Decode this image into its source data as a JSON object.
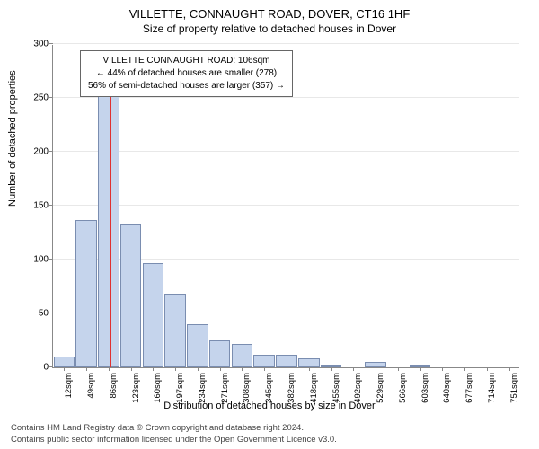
{
  "title": "VILLETTE, CONNAUGHT ROAD, DOVER, CT16 1HF",
  "subtitle": "Size of property relative to detached houses in Dover",
  "ylabel": "Number of detached properties",
  "xlabel": "Distribution of detached houses by size in Dover",
  "footer_line1": "Contains HM Land Registry data © Crown copyright and database right 2024.",
  "footer_line2": "Contains public sector information licensed under the Open Government Licence v3.0.",
  "chart": {
    "type": "bar",
    "ylim": [
      0,
      300
    ],
    "ytick_step": 50,
    "bar_color": "#c5d4ec",
    "bar_border": "#7a8db0",
    "highlight_color": "#e03030",
    "highlight_index": 2,
    "grid_color": "#e8e8e8",
    "background_color": "#ffffff",
    "axis_color": "#888888",
    "label_fontsize": 11,
    "tick_fontsize": 10,
    "categories": [
      "12sqm",
      "49sqm",
      "86sqm",
      "123sqm",
      "160sqm",
      "197sqm",
      "234sqm",
      "271sqm",
      "308sqm",
      "345sqm",
      "382sqm",
      "418sqm",
      "455sqm",
      "492sqm",
      "529sqm",
      "566sqm",
      "603sqm",
      "640sqm",
      "677sqm",
      "714sqm",
      "751sqm"
    ],
    "values": [
      10,
      137,
      252,
      133,
      97,
      68,
      40,
      25,
      22,
      12,
      12,
      8,
      2,
      0,
      5,
      0,
      2,
      0,
      0,
      0,
      0
    ],
    "bar_width": 0.95
  },
  "info_box": {
    "line1": "VILLETTE CONNAUGHT ROAD: 106sqm",
    "line2": "← 44% of detached houses are smaller (278)",
    "line3": "56% of semi-detached houses are larger (357) →"
  }
}
